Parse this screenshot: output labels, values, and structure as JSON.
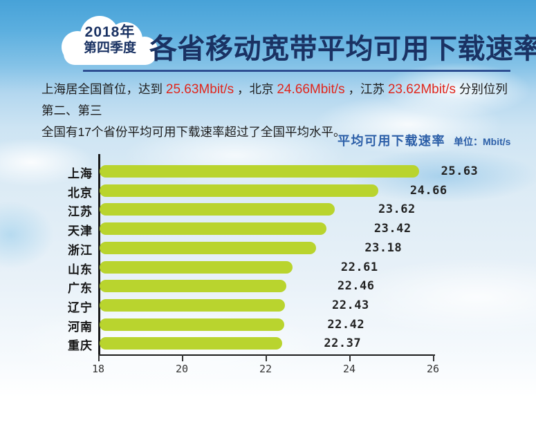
{
  "badge": {
    "line1": "2018年",
    "line2": "第四季度"
  },
  "title": "各省移动宽带平均可用下载速率",
  "intro": {
    "line1_segments": [
      {
        "text": "上海居全国首位，达到 ",
        "emphasis": false
      },
      {
        "text": "25.63Mbit/s",
        "emphasis": true
      },
      {
        "text": " ，北京 ",
        "emphasis": false
      },
      {
        "text": "24.66Mbit/s",
        "emphasis": true
      },
      {
        "text": " ，江苏 ",
        "emphasis": false
      },
      {
        "text": "23.62Mbit/s",
        "emphasis": true
      },
      {
        "text": " 分别位列第二、第三",
        "emphasis": false
      }
    ],
    "line2": "全国有17个省份平均可用下载速率超过了全国平均水平。"
  },
  "chart_header": {
    "title": "平均可用下载速率",
    "unit_label": "单位：Mbit/s"
  },
  "chart_data": {
    "type": "bar",
    "orientation": "horizontal",
    "title": "平均可用下载速率",
    "xlabel": "Mbit/s",
    "ylabel": "",
    "categories": [
      "上海",
      "北京",
      "江苏",
      "天津",
      "浙江",
      "山东",
      "广东",
      "辽宁",
      "河南",
      "重庆"
    ],
    "values": [
      25.63,
      24.66,
      23.62,
      23.42,
      23.18,
      22.61,
      22.46,
      22.43,
      22.42,
      22.37
    ],
    "xlim": [
      18,
      26
    ],
    "xticks": [
      18,
      20,
      22,
      24,
      26
    ],
    "grid": false,
    "value_labels_shown": true,
    "legend": "none",
    "bar_color": "#b9d42e"
  },
  "colors": {
    "bar_green": "#b9d42e",
    "highlight_red": "#e0261c",
    "title_navy": "#1a3263",
    "subtitle_blue": "#2c5fa8"
  }
}
